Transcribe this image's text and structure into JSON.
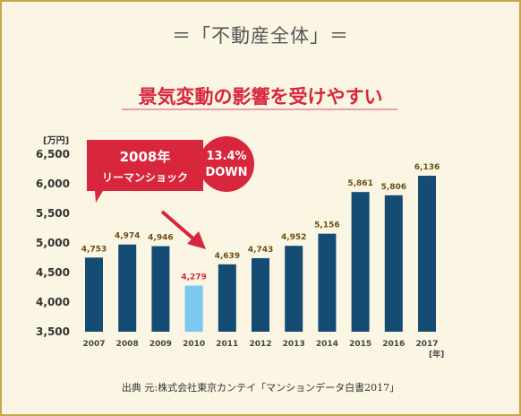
{
  "header": {
    "title": "＝「不動産全体」＝",
    "subtitle": "景気変動の影響を受けやすい"
  },
  "source": "出典 元:株式会社東京カンテイ「マンションデータ白書2017」",
  "callout": {
    "line1": "2008年",
    "line2": "リーマンショック"
  },
  "badge": {
    "line1": "13.4%",
    "line2": "DOWN"
  },
  "colors": {
    "bar": "#144c74",
    "highlight": "#7cc8ee",
    "accent": "#d8263c",
    "background": "#fbf5e3",
    "border": "#c9a64a"
  },
  "chart_data": {
    "type": "bar",
    "title": "景気変動の影響を受けやすい",
    "yunit": "[万円]",
    "xunit": "[年]",
    "ylim": [
      3500,
      6500
    ],
    "yticks": [
      "3,500",
      "4,000",
      "4,500",
      "5,000",
      "5,500",
      "6,000",
      "6,500"
    ],
    "categories": [
      "2007",
      "2008",
      "2009",
      "2010",
      "2011",
      "2012",
      "2013",
      "2014",
      "2015",
      "2016",
      "2017"
    ],
    "values": [
      4753,
      4974,
      4946,
      4279,
      4639,
      4743,
      4952,
      5156,
      5861,
      5806,
      6136
    ],
    "labels": [
      "4,753",
      "4,974",
      "4,946",
      "4,279",
      "4,639",
      "4,743",
      "4,952",
      "5,156",
      "5,861",
      "5,806",
      "6,136"
    ],
    "highlight_index": 3,
    "grid": false
  }
}
